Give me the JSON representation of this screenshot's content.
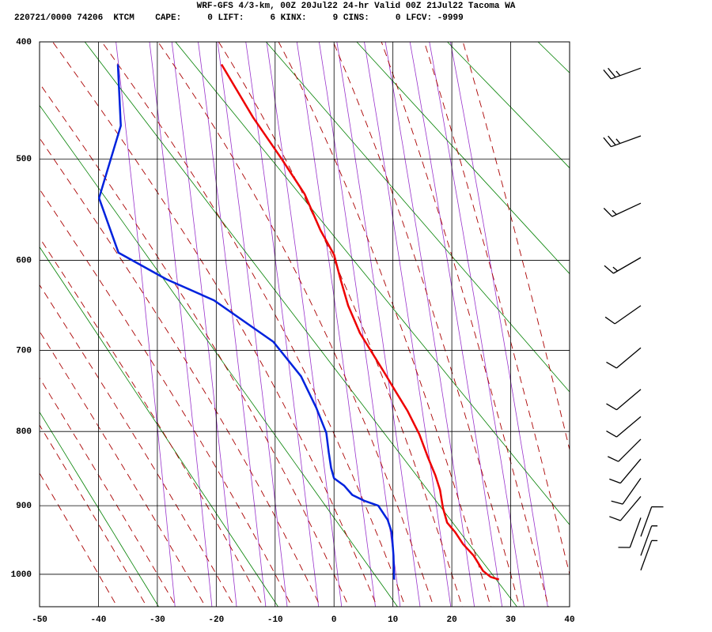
{
  "chart_data": {
    "type": "stuve",
    "title": "WRF-GFS 4/3-km, 00Z 20Jul22 24-hr Valid 00Z 21Jul22 Tacoma WA",
    "subtitle": "220721/0000 74206  KTCM    CAPE:     0 LIFT:     6 KINX:     9 CINS:     0 LFCV: -9999",
    "xlim": [
      -50,
      40
    ],
    "xticks": [
      -50,
      -40,
      -30,
      -20,
      -10,
      0,
      10,
      20,
      30,
      40
    ],
    "ylim": [
      400,
      1050
    ],
    "yticks": [
      400,
      500,
      600,
      700,
      800,
      900,
      1000
    ],
    "grid": true,
    "series": [
      {
        "color": "#ee0000",
        "pressure": [
          1008,
          1004,
          995,
          972,
          955,
          938,
          924,
          903,
          878,
          858,
          833,
          804,
          774,
          750,
          726,
          700,
          680,
          649,
          620,
          594,
          569,
          533,
          499,
          463,
          418
        ],
        "values": [
          28.0,
          26.6,
          25.3,
          23.7,
          21.9,
          20.6,
          19.2,
          18.5,
          18.0,
          17.2,
          15.9,
          14.5,
          12.5,
          10.5,
          8.5,
          6.2,
          4.4,
          2.4,
          1.1,
          0,
          -2.3,
          -5.0,
          -9.0,
          -13.7,
          -19.1
        ]
      },
      {
        "color": "#0022dd",
        "pressure": [
          1008,
          972,
          938,
          920,
          900,
          893,
          885,
          872,
          862,
          848,
          827,
          802,
          770,
          731,
          690,
          643,
          620,
          592,
          537,
          470,
          418
        ],
        "values": [
          10.2,
          10.1,
          9.8,
          9.1,
          7.5,
          5.1,
          3.1,
          1.7,
          0,
          -0.5,
          -0.9,
          -1.3,
          -3.0,
          -5.6,
          -10.3,
          -20.4,
          -28.5,
          -36.6,
          -39.9,
          -36.2,
          -36.7
        ]
      }
    ],
    "winds": {
      "pressure": [
        421,
        479,
        542,
        597,
        649,
        697,
        747,
        781,
        810,
        836,
        862,
        887,
        917,
        944,
        972,
        994
      ],
      "direction": [
        250,
        250,
        245,
        240,
        235,
        230,
        230,
        230,
        225,
        220,
        215,
        220,
        200,
        20,
        20,
        20
      ],
      "speed": [
        25,
        25,
        15,
        15,
        10,
        10,
        10,
        10,
        10,
        10,
        10,
        10,
        10,
        10,
        5,
        5
      ]
    }
  }
}
